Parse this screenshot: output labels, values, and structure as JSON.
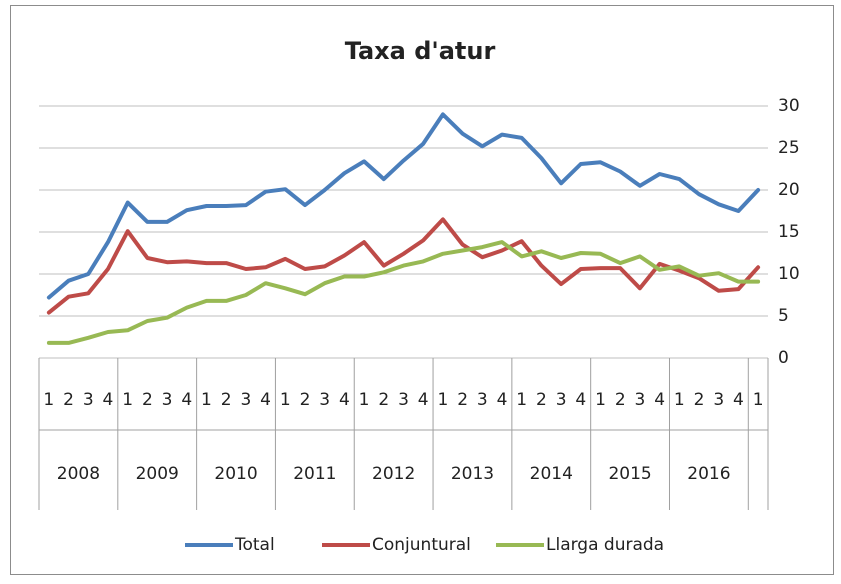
{
  "chart_data": {
    "type": "line",
    "title": "Taxa d'atur",
    "categories": [
      "1",
      "2",
      "3",
      "4",
      "1",
      "2",
      "3",
      "4",
      "1",
      "2",
      "3",
      "4",
      "1",
      "2",
      "3",
      "4",
      "1",
      "2",
      "3",
      "4",
      "1",
      "2",
      "3",
      "4",
      "1",
      "2",
      "3",
      "4",
      "1",
      "2",
      "3",
      "4",
      "1",
      "2",
      "3",
      "4",
      "1"
    ],
    "groups": [
      "2008",
      "2009",
      "2010",
      "2011",
      "2012",
      "2013",
      "2014",
      "2015",
      "2016"
    ],
    "series": [
      {
        "name": "Total",
        "color": "#4a7ebb",
        "values": [
          7.2,
          9.2,
          10,
          13.8,
          18.5,
          16.2,
          16.2,
          17.6,
          18.1,
          18.1,
          18.2,
          19.8,
          20.1,
          18.2,
          20,
          22,
          23.4,
          21.3,
          23.5,
          25.5,
          29,
          26.7,
          25.2,
          26.6,
          26.2,
          23.8,
          20.8,
          23.1,
          23.3,
          22.2,
          20.5,
          21.9,
          21.3,
          19.5,
          18.3,
          17.5,
          20
        ]
      },
      {
        "name": "Conjuntural",
        "color": "#be4b48",
        "values": [
          5.4,
          7.3,
          7.7,
          10.6,
          15.1,
          11.9,
          11.4,
          11.5,
          11.3,
          11.3,
          10.6,
          10.8,
          11.8,
          10.6,
          10.9,
          12.2,
          13.8,
          11,
          12.4,
          14,
          16.5,
          13.5,
          12,
          12.8,
          13.9,
          11,
          8.8,
          10.6,
          10.7,
          10.7,
          8.3,
          11.2,
          10.4,
          9.5,
          8,
          8.2,
          10.8
        ]
      },
      {
        "name": "Llarga durada",
        "color": "#98b954",
        "values": [
          1.8,
          1.8,
          2.4,
          3.1,
          3.3,
          4.4,
          4.8,
          6,
          6.8,
          6.8,
          7.5,
          8.9,
          8.3,
          7.6,
          8.9,
          9.7,
          9.7,
          10.2,
          11,
          11.5,
          12.4,
          12.8,
          13.2,
          13.8,
          12.1,
          12.7,
          11.9,
          12.5,
          12.4,
          11.3,
          12.1,
          10.5,
          10.9,
          9.8,
          10.1,
          9.1,
          9.1
        ]
      }
    ],
    "ylim": [
      0,
      30
    ],
    "yticks": [
      0,
      5,
      10,
      15,
      20,
      25,
      30
    ],
    "grid": true,
    "legend": "bottom"
  }
}
